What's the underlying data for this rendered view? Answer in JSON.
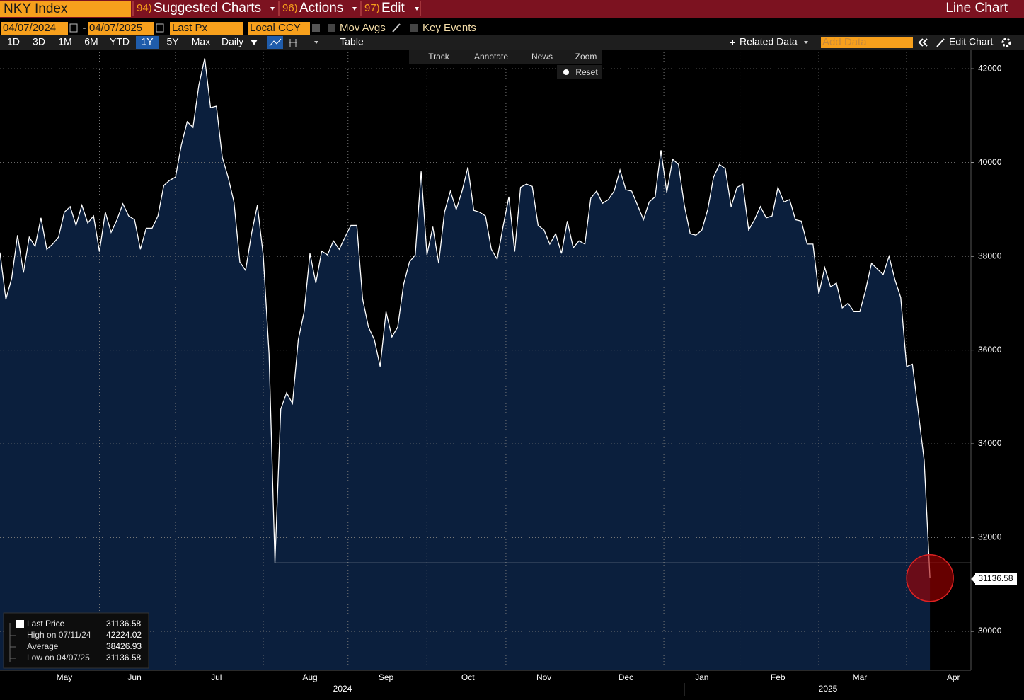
{
  "header": {
    "ticker": "NKY Index",
    "menus": [
      {
        "num": "94)",
        "label": "Suggested Charts"
      },
      {
        "num": "96)",
        "label": "Actions"
      },
      {
        "num": "97)",
        "label": "Edit"
      }
    ],
    "chart_type": "Line Chart"
  },
  "controls": {
    "start_date": "04/07/2024",
    "date_separator": "-",
    "end_date": "04/07/2025",
    "field": "Last Px",
    "currency": "Local CCY",
    "options": [
      "Mov Avgs",
      "Key Events"
    ]
  },
  "toolbar": {
    "periods": [
      "1D",
      "3D",
      "1M",
      "6M",
      "YTD",
      "1Y",
      "5Y",
      "Max"
    ],
    "frequency": "Daily",
    "table": "Table",
    "related": "Related Data",
    "add_data": "Add Data",
    "edit_chart": "Edit Chart"
  },
  "tools": {
    "items": [
      "Track",
      "Annotate",
      "News",
      "Zoom"
    ],
    "reset": "Reset"
  },
  "legend": {
    "items": [
      {
        "label": "Last Price",
        "value": "31136.58"
      },
      {
        "label": "High on 07/11/24",
        "value": "42224.02"
      },
      {
        "label": "Average",
        "value": "38426.93"
      },
      {
        "label": "Low on 04/07/25",
        "value": "31136.58"
      }
    ]
  },
  "chart_data": {
    "type": "line",
    "categories": [
      null,
      null,
      null,
      null,
      null,
      null,
      null,
      null,
      null,
      null,
      null,
      "May",
      null,
      null,
      null,
      null,
      null,
      null,
      null,
      null,
      null,
      null,
      null,
      "Jun",
      null,
      null,
      null,
      null,
      null,
      null,
      null,
      null,
      null,
      null,
      null,
      null,
      null,
      "Jul",
      null,
      null,
      null,
      null,
      null,
      null,
      null,
      null,
      null,
      null,
      null,
      null,
      null,
      null,
      null,
      "Aug",
      null,
      null,
      null,
      null,
      null,
      null,
      null,
      null,
      null,
      null,
      null,
      null,
      "Sep",
      null,
      null,
      null,
      null,
      null,
      null,
      null,
      null,
      null,
      null,
      null,
      null,
      null,
      "Oct",
      null,
      null,
      null,
      null,
      null,
      null,
      null,
      null,
      null,
      null,
      null,
      null,
      "Nov",
      null,
      null,
      null,
      null,
      null,
      null,
      null,
      null,
      null,
      null,
      null,
      null,
      null,
      "Dec",
      null,
      null,
      null,
      null,
      null,
      null,
      null,
      null,
      null,
      null,
      null,
      null,
      "Jan",
      null,
      null,
      null,
      null,
      null,
      null,
      null,
      null,
      null,
      null,
      null,
      null,
      "Feb",
      null,
      null,
      null,
      null,
      null,
      null,
      null,
      null,
      null,
      null,
      null,
      null,
      null,
      "Mar",
      null,
      null,
      null,
      null,
      null,
      null,
      null,
      null,
      null,
      null,
      null,
      null,
      null,
      null,
      null,
      "Apr"
    ],
    "years": [
      "2024",
      "2025"
    ],
    "series": [
      {
        "name": "Last Price",
        "color": "#ffffff",
        "values": [
          38080,
          37080,
          37530,
          38450,
          37650,
          38410,
          38210,
          38820,
          38150,
          38260,
          38410,
          38940,
          39060,
          38660,
          39090,
          38710,
          38860,
          38100,
          38940,
          38510,
          38780,
          39120,
          38860,
          38780,
          38150,
          38600,
          38600,
          38860,
          39510,
          39620,
          39690,
          40370,
          40870,
          40750,
          41650,
          42224,
          41170,
          41200,
          40110,
          39690,
          39160,
          37880,
          37700,
          38480,
          39090,
          38030,
          35920,
          31460,
          34740,
          35090,
          34860,
          36220,
          36820,
          38060,
          37430,
          38110,
          38030,
          38330,
          38150,
          38410,
          38660,
          38660,
          37090,
          36490,
          36220,
          35650,
          36820,
          36280,
          36490,
          37400,
          37880,
          38030,
          39810,
          38030,
          38630,
          37850,
          38940,
          39390,
          39000,
          39390,
          39900,
          38980,
          38940,
          38860,
          38150,
          37940,
          38630,
          39270,
          38100,
          39470,
          39540,
          39490,
          38660,
          38560,
          38260,
          38480,
          38060,
          38750,
          38180,
          38330,
          38260,
          39240,
          39390,
          39130,
          39210,
          39390,
          39840,
          39420,
          39390,
          39090,
          38780,
          39160,
          39270,
          40260,
          39360,
          40070,
          39960,
          39090,
          38480,
          38450,
          38560,
          39000,
          39690,
          39960,
          39870,
          39060,
          39470,
          39540,
          38560,
          38780,
          39060,
          38820,
          38860,
          39470,
          39160,
          39210,
          38780,
          38750,
          38260,
          38260,
          37200,
          37760,
          37350,
          37430,
          36900,
          37000,
          36820,
          36820,
          37280,
          37850,
          37730,
          37610,
          38000,
          37500,
          37120,
          35650,
          35700,
          34680,
          33650,
          31136.58,
          null,
          null,
          null,
          null
        ]
      }
    ],
    "area_color": "#0b1f3d",
    "reference_line": 31460,
    "ylim": [
      29170,
      42410
    ],
    "yticks": [
      30000,
      32000,
      34000,
      36000,
      38000,
      40000,
      42000
    ],
    "grid": true
  }
}
